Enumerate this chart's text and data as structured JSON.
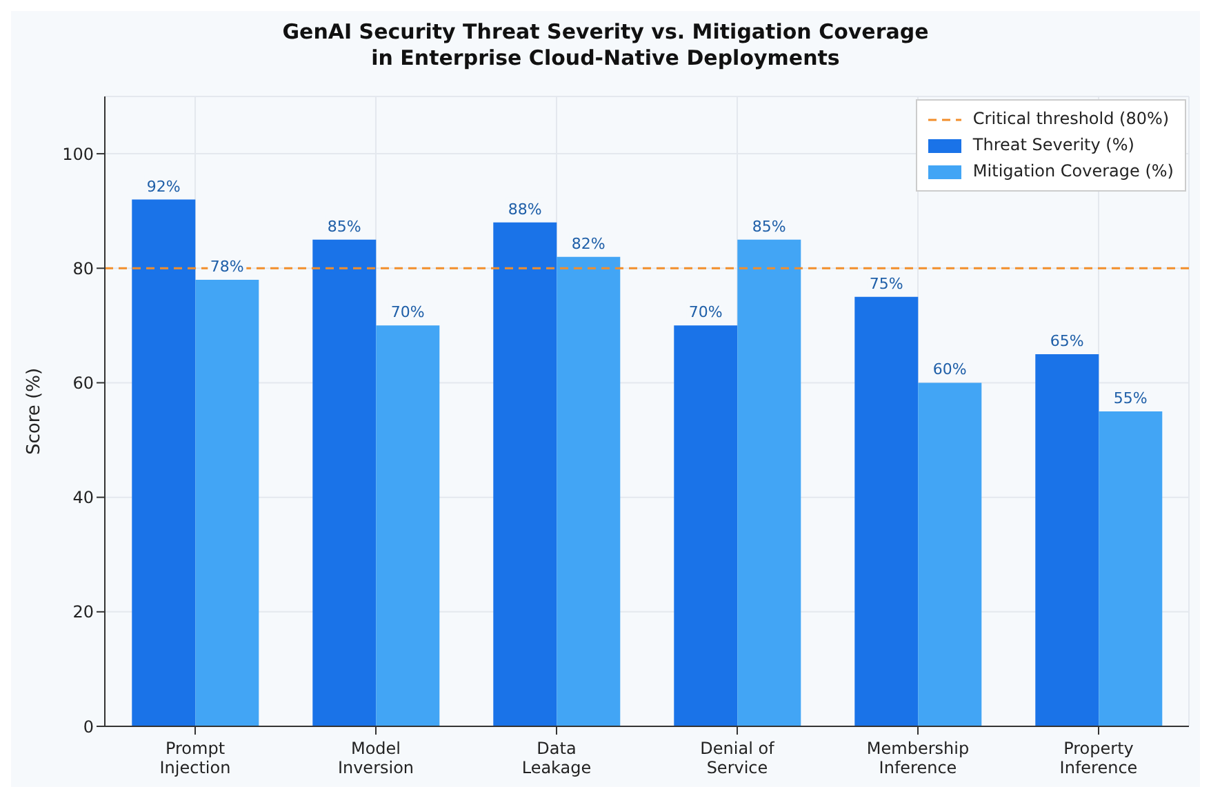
{
  "chart_data": {
    "type": "bar",
    "title": "GenAI Security Threat Severity vs. Mitigation Coverage\nin Enterprise Cloud-Native Deployments",
    "ylabel": "Score (%)",
    "categories": [
      "Prompt\nInjection",
      "Model\nInversion",
      "Data\nLeakage",
      "Denial of\nService",
      "Membership\nInference",
      "Property\nInference"
    ],
    "series": [
      {
        "name": "Threat Severity (%)",
        "color": "#1a73e8",
        "values": [
          92,
          85,
          88,
          70,
          75,
          65
        ],
        "value_labels": [
          "92%",
          "85%",
          "88%",
          "70%",
          "75%",
          "65%"
        ]
      },
      {
        "name": "Mitigation Coverage (%)",
        "color": "#42a5f5",
        "values": [
          78,
          70,
          82,
          85,
          60,
          55
        ],
        "value_labels": [
          "78%",
          "70%",
          "82%",
          "85%",
          "60%",
          "55%"
        ]
      }
    ],
    "ylim": [
      0,
      110
    ],
    "yticks": [
      0,
      20,
      40,
      60,
      80,
      100
    ],
    "grid": true,
    "legend": "top right",
    "ref_lines": [
      {
        "axis": "y",
        "value": 80,
        "label": "Critical threshold (80%)",
        "color": "#f28e2b",
        "line_style": "dashed"
      }
    ]
  }
}
